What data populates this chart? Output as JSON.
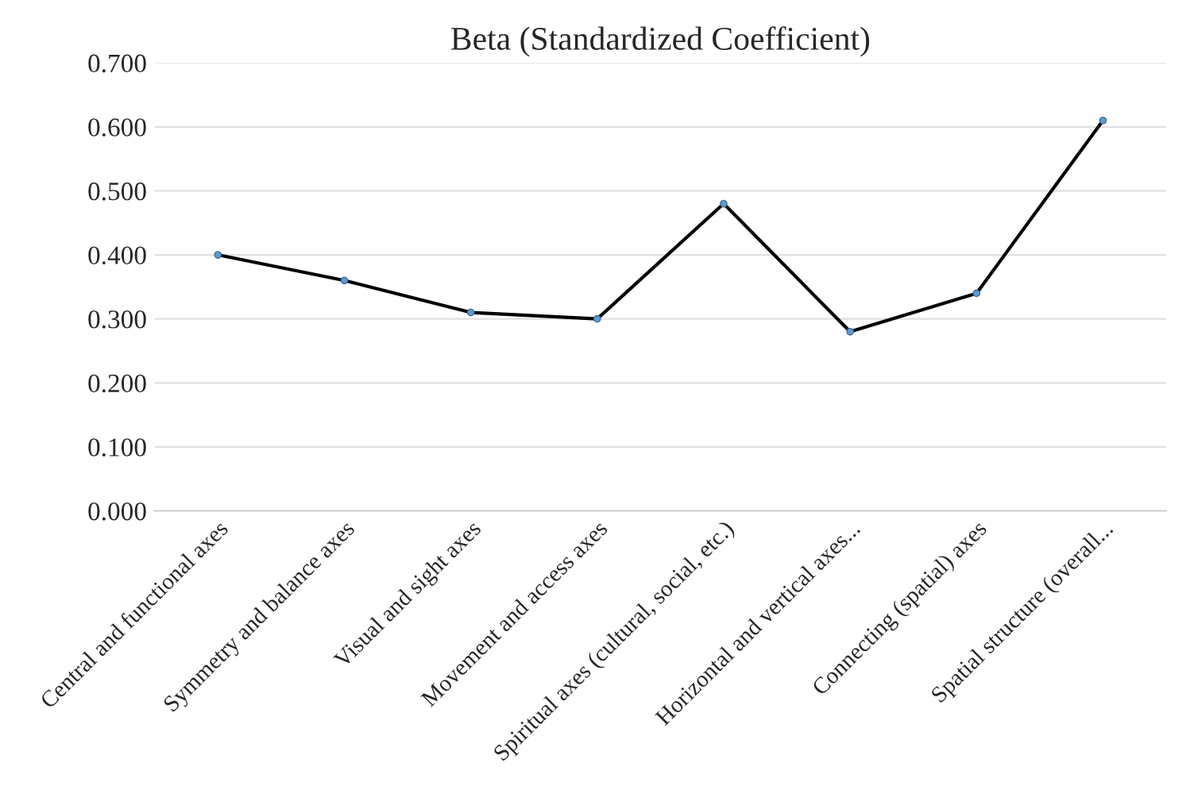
{
  "chart_data": {
    "type": "line",
    "title": "Beta (Standardized Coefficient)",
    "categories": [
      "Central and functional axes",
      "Symmetry and balance axes",
      "Visual and sight axes",
      "Movement and access axes",
      "Spiritual axes (cultural, social, etc.)",
      "Horizontal and vertical axes...",
      "Connecting (spatial) axes",
      "Spatial structure (overall..."
    ],
    "series": [
      {
        "color": "#000000",
        "values": [
          0.4,
          0.36,
          0.31,
          0.3,
          0.48,
          0.28,
          0.34,
          0.61
        ]
      }
    ],
    "ylim": [
      0,
      0.7
    ],
    "yticks": [
      {
        "value": 0,
        "label": "0.000"
      },
      {
        "value": 0.1,
        "label": "0.100"
      },
      {
        "value": 0.2,
        "label": "0.200"
      },
      {
        "value": 0.3,
        "label": "0.300"
      },
      {
        "value": 0.4,
        "label": "0.400"
      },
      {
        "value": 0.5,
        "label": "0.500"
      },
      {
        "value": 0.6,
        "label": "0.600"
      },
      {
        "value": 0.7,
        "label": "0.700"
      }
    ],
    "grid": "y",
    "marker": "circle",
    "line_style": "solid"
  }
}
